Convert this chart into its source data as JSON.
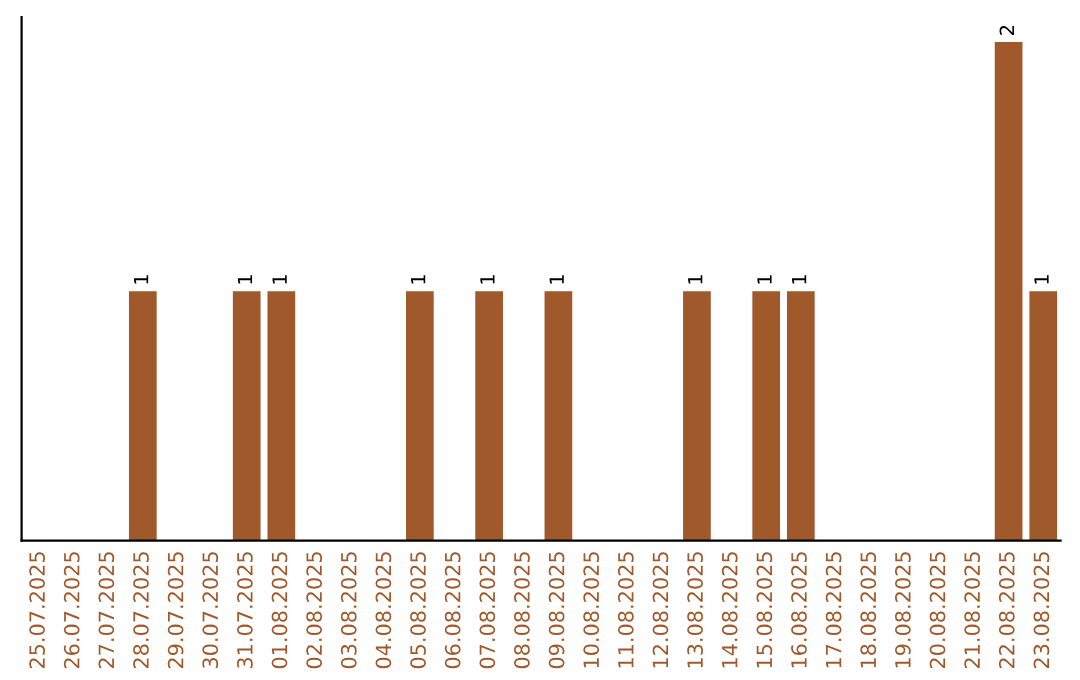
{
  "chart_data": {
    "type": "bar",
    "categories": [
      "25.07.2025",
      "26.07.2025",
      "27.07.2025",
      "28.07.2025",
      "29.07.2025",
      "30.07.2025",
      "31.07.2025",
      "01.08.2025",
      "02.08.2025",
      "03.08.2025",
      "04.08.2025",
      "05.08.2025",
      "06.08.2025",
      "07.08.2025",
      "08.08.2025",
      "09.08.2025",
      "10.08.2025",
      "11.08.2025",
      "12.08.2025",
      "13.08.2025",
      "14.08.2025",
      "15.08.2025",
      "16.08.2025",
      "17.08.2025",
      "18.08.2025",
      "19.08.2025",
      "20.08.2025",
      "21.08.2025",
      "22.08.2025",
      "23.08.2025"
    ],
    "values": [
      0,
      0,
      0,
      1,
      0,
      0,
      1,
      1,
      0,
      0,
      0,
      1,
      0,
      1,
      0,
      1,
      0,
      0,
      0,
      1,
      0,
      1,
      1,
      0,
      0,
      0,
      0,
      0,
      2,
      1
    ],
    "value_labels": [
      null,
      null,
      null,
      "1",
      null,
      null,
      "1",
      "1",
      null,
      null,
      null,
      "1",
      null,
      "1",
      null,
      "1",
      null,
      null,
      null,
      "1",
      null,
      "1",
      "1",
      null,
      null,
      null,
      null,
      null,
      "2",
      "1"
    ],
    "color": "#a0592a",
    "tick_labels": "x",
    "grid": false,
    "legend": false
  }
}
